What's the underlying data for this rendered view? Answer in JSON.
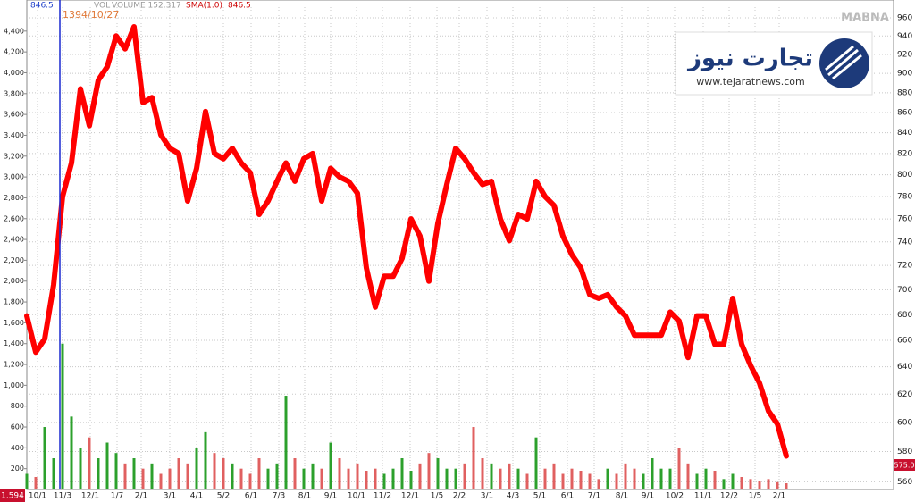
{
  "chart_data": {
    "type": "stock",
    "header": {
      "last": "846.5",
      "vol": "VOL",
      "volume": "VOLUME 152.317",
      "sma": "SMA(1.0)",
      "sma_value": "846.5"
    },
    "watermark": "MABNA",
    "logo": {
      "name": "تجارت نیوز",
      "url": "www.tejaratnews.com"
    },
    "cursor": {
      "x": 3.7,
      "label": "1394/10/27"
    },
    "left_badge": "1.594",
    "last_price_badge": "575.0",
    "xlim": [
      0,
      97
    ],
    "xticks": [
      {
        "value": 1.2,
        "label": "10/1"
      },
      {
        "value": 4,
        "label": "11/3"
      },
      {
        "value": 7.1,
        "label": "12/1"
      },
      {
        "value": 10.1,
        "label": "1/7"
      },
      {
        "value": 12.8,
        "label": "2/1"
      },
      {
        "value": 16,
        "label": "3/1"
      },
      {
        "value": 19,
        "label": "4/1"
      },
      {
        "value": 22,
        "label": "5/2"
      },
      {
        "value": 25.1,
        "label": "6/1"
      },
      {
        "value": 28.2,
        "label": "7/3"
      },
      {
        "value": 31.1,
        "label": "8/1"
      },
      {
        "value": 34,
        "label": "9/1"
      },
      {
        "value": 36.9,
        "label": "10/1"
      },
      {
        "value": 39.8,
        "label": "11/2"
      },
      {
        "value": 42.9,
        "label": "12/1"
      },
      {
        "value": 45.9,
        "label": "1/5"
      },
      {
        "value": 48.4,
        "label": "2/2"
      },
      {
        "value": 51.5,
        "label": "3/1"
      },
      {
        "value": 54.4,
        "label": "4/3"
      },
      {
        "value": 57.4,
        "label": "5/1"
      },
      {
        "value": 60.5,
        "label": "6/1"
      },
      {
        "value": 63.5,
        "label": "7/1"
      },
      {
        "value": 66.6,
        "label": "8/1"
      },
      {
        "value": 69.5,
        "label": "9/1"
      },
      {
        "value": 72.5,
        "label": "10/2"
      },
      {
        "value": 75.7,
        "label": "11/1"
      },
      {
        "value": 78.6,
        "label": "12/2"
      },
      {
        "value": 81.5,
        "label": "1/5"
      },
      {
        "value": 84.2,
        "label": "2/1"
      }
    ],
    "ylim": [
      0,
      4630
    ],
    "yticks": [
      {
        "value": 200,
        "label": "200"
      },
      {
        "value": 400,
        "label": "400"
      },
      {
        "value": 600,
        "label": "600"
      },
      {
        "value": 800,
        "label": "800"
      },
      {
        "value": 1000,
        "label": "1,000"
      },
      {
        "value": 1200,
        "label": "1,200"
      },
      {
        "value": 1400,
        "label": "1,400"
      },
      {
        "value": 1600,
        "label": "1,600"
      },
      {
        "value": 1800,
        "label": "1,800"
      },
      {
        "value": 2000,
        "label": "2,000"
      },
      {
        "value": 2200,
        "label": "2,200"
      },
      {
        "value": 2400,
        "label": "2,400"
      },
      {
        "value": 2600,
        "label": "2,600"
      },
      {
        "value": 2800,
        "label": "2,800"
      },
      {
        "value": 3000,
        "label": "3,000"
      },
      {
        "value": 3200,
        "label": "3,200"
      },
      {
        "value": 3400,
        "label": "3,400"
      },
      {
        "value": 3600,
        "label": "3,600"
      },
      {
        "value": 3800,
        "label": "3,800"
      },
      {
        "value": 4000,
        "label": "4,000"
      },
      {
        "value": 4200,
        "label": "4,200"
      },
      {
        "value": 4400,
        "label": "4,400"
      }
    ],
    "y2lim": [
      555,
      972
    ],
    "y2scale": "log",
    "y2ticks": [
      560,
      580,
      600,
      620,
      640,
      660,
      680,
      700,
      720,
      740,
      760,
      780,
      800,
      820,
      840,
      860,
      880,
      900,
      920,
      940,
      960
    ],
    "grid": true,
    "series": [
      {
        "axis": "y2",
        "color": "#ff0000",
        "values": [
          679,
          651,
          661,
          704,
          780,
          811,
          884,
          847,
          893,
          907,
          940,
          926,
          950,
          870,
          875,
          838,
          825,
          820,
          776,
          806,
          861,
          820,
          815,
          825,
          811,
          802,
          764,
          776,
          794,
          811,
          794,
          815,
          820,
          776,
          806,
          798,
          794,
          783,
          718,
          686,
          711,
          711,
          726,
          760,
          745,
          707,
          756,
          791,
          825,
          815,
          802,
          791,
          794,
          760,
          741,
          764,
          760,
          794,
          780,
          772,
          745,
          729,
          718,
          696,
          693,
          696,
          686,
          679,
          664,
          664,
          664,
          664,
          682,
          675,
          647,
          679,
          679,
          657,
          657,
          693,
          657,
          641,
          628,
          608,
          599,
          577
        ]
      },
      {
        "axis": "y",
        "up_color": "#2ca02c",
        "down_color": "#e06060",
        "values": [
          150,
          120,
          600,
          300,
          1400,
          700,
          400,
          500,
          300,
          450,
          350,
          250,
          300,
          200,
          250,
          150,
          200,
          300,
          250,
          400,
          550,
          350,
          300,
          250,
          200,
          150,
          300,
          200,
          250,
          900,
          300,
          200,
          250,
          200,
          450,
          300,
          200,
          250,
          180,
          200,
          150,
          200,
          300,
          180,
          250,
          350,
          300,
          200,
          200,
          250,
          600,
          300,
          250,
          200,
          250,
          200,
          150,
          500,
          200,
          250,
          150,
          200,
          180,
          150,
          100,
          200,
          150,
          250,
          200,
          150,
          300,
          200,
          200,
          400,
          250,
          150,
          200,
          180,
          100,
          150,
          120,
          100,
          80,
          100,
          70,
          60
        ]
      }
    ]
  }
}
